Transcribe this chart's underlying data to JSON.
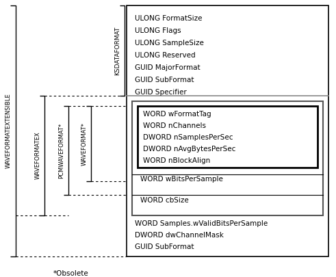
{
  "fig_width": 4.91,
  "fig_height": 4.05,
  "dpi": 100,
  "bg_color": "#ffffff",
  "ksdataformat_fields": [
    "ULONG FormatSize",
    "ULONG Flags",
    "ULONG SampleSize",
    "ULONG Reserved",
    "GUID MajorFormat",
    "GUID SubFormat",
    "GUID Specifier"
  ],
  "waveformat_fields": [
    "WORD wFormatTag",
    "WORD nChannels",
    "DWORD nSamplesPerSec",
    "DWORD nAvgBytesPerSec",
    "WORD nBlockAlign"
  ],
  "waveformatex_add": [
    "WORD wBitsPerSample",
    "WORD cbSize"
  ],
  "waveformatextensible_fields": [
    "WORD Samples.wValidBitsPerSample",
    "DWORD dwChannelMask",
    "GUID SubFormat"
  ],
  "obsolete_note": "*Obsolete",
  "label_ksdataformat": "KSDATAFORMAT",
  "label_waveformat": "WAVEFORMAT*",
  "label_pcmwaveformat": "PCMWAVEFORMAT*",
  "label_waveformatex": "WAVEFORMATEX",
  "label_waveformatextensible": "WAVEFORMATEXTENSIBLE"
}
